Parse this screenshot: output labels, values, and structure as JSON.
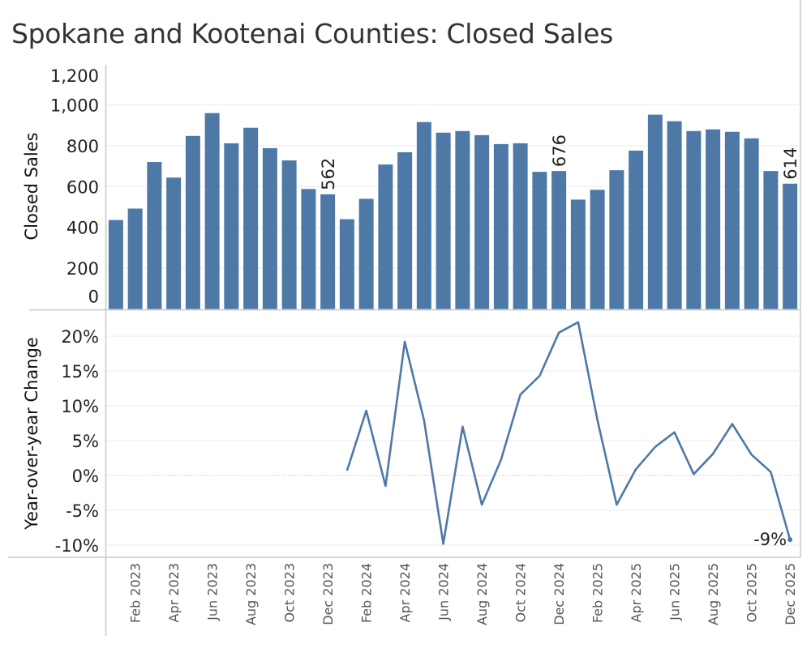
{
  "title": "Spokane and Kootenai Counties: Closed Sales",
  "chart_data": [
    {
      "type": "bar",
      "ylabel": "Closed Sales",
      "ylim": [
        0,
        1200
      ],
      "yticks": [
        "0",
        "200",
        "400",
        "600",
        "800",
        "1,000",
        "1,200"
      ],
      "ytick_values": [
        0,
        200,
        400,
        600,
        800,
        1000,
        1200
      ],
      "grid": true,
      "color": "#4e79a7",
      "categories": [
        "Jan 2023",
        "Feb 2023",
        "Mar 2023",
        "Apr 2023",
        "May 2023",
        "Jun 2023",
        "Jul 2023",
        "Aug 2023",
        "Sep 2023",
        "Oct 2023",
        "Nov 2023",
        "Dec 2023",
        "Jan 2024",
        "Feb 2024",
        "Mar 2024",
        "Apr 2024",
        "May 2024",
        "Jun 2024",
        "Jul 2024",
        "Aug 2024",
        "Sep 2024",
        "Oct 2024",
        "Nov 2024",
        "Dec 2024",
        "Jan 2025",
        "Feb 2025",
        "Mar 2025",
        "Apr 2025",
        "May 2025",
        "Jun 2025",
        "Jul 2025",
        "Aug 2025",
        "Sep 2025",
        "Oct 2025",
        "Nov 2025",
        "Dec 2025"
      ],
      "values": [
        436,
        492,
        720,
        644,
        848,
        960,
        812,
        888,
        788,
        728,
        588,
        562,
        440,
        540,
        708,
        768,
        916,
        864,
        872,
        852,
        808,
        812,
        672,
        676,
        536,
        584,
        680,
        776,
        952,
        920,
        872,
        880,
        868,
        836,
        676,
        614
      ],
      "data_labels": [
        {
          "category": "Dec 2023",
          "text": "562"
        },
        {
          "category": "Dec 2024",
          "text": "676"
        },
        {
          "category": "Dec 2025",
          "text": "614"
        }
      ]
    },
    {
      "type": "line",
      "ylabel": "Year-over-year Change",
      "ylim": [
        -11,
        22.5
      ],
      "yticks": [
        "-10%",
        "-5%",
        "0%",
        "5%",
        "10%",
        "15%",
        "20%"
      ],
      "ytick_values": [
        -10,
        -5,
        0,
        5,
        10,
        15,
        20
      ],
      "grid": true,
      "color": "#4e79a7",
      "x": [
        "Jan 2024",
        "Feb 2024",
        "Mar 2024",
        "Apr 2024",
        "May 2024",
        "Jun 2024",
        "Jul 2024",
        "Aug 2024",
        "Sep 2024",
        "Oct 2024",
        "Nov 2024",
        "Dec 2024",
        "Jan 2025",
        "Feb 2025",
        "Mar 2025",
        "Apr 2025",
        "May 2025",
        "Jun 2025",
        "Jul 2025",
        "Aug 2025",
        "Sep 2025",
        "Oct 2025",
        "Nov 2025",
        "Dec 2025"
      ],
      "values": [
        0.7,
        9.3,
        -1.5,
        19.2,
        7.9,
        -9.8,
        7.0,
        -4.2,
        2.3,
        11.6,
        14.3,
        20.5,
        22.0,
        8.0,
        -4.2,
        0.9,
        4.1,
        6.2,
        0.2,
        3.1,
        7.4,
        3.0,
        0.5,
        -9.2
      ],
      "data_labels": [
        {
          "x": "Dec 2025",
          "text": "-9%"
        }
      ]
    }
  ],
  "x_axis": {
    "tick_labels": [
      "Feb 2023",
      "Apr 2023",
      "Jun 2023",
      "Aug 2023",
      "Oct 2023",
      "Dec 2023",
      "Feb 2024",
      "Apr 2024",
      "Jun 2024",
      "Aug 2024",
      "Oct 2024",
      "Dec 2024",
      "Feb 2025",
      "Apr 2025",
      "Jun 2025",
      "Aug 2025",
      "Oct 2025",
      "Dec 2025"
    ]
  }
}
